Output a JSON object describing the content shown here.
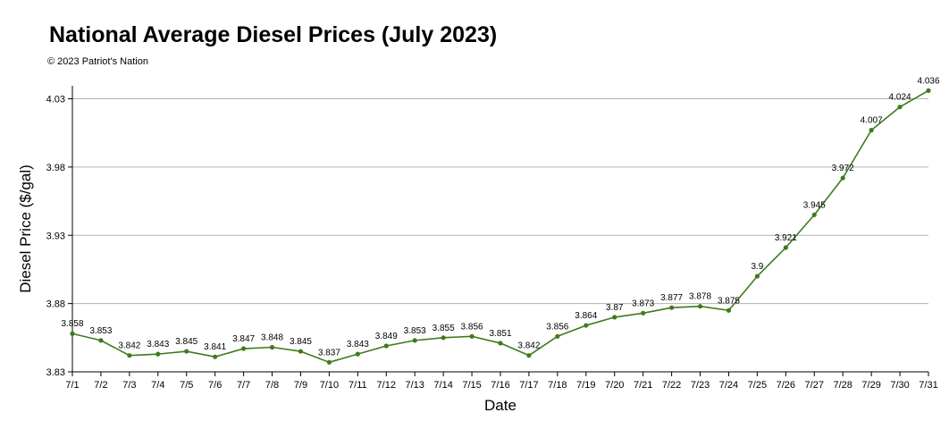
{
  "chart_data": {
    "type": "line",
    "title": "National Average Diesel Prices (July 2023)",
    "subtitle": "© 2023 Patriot's Nation",
    "xlabel": "Date",
    "ylabel": "Diesel Price ($/gal)",
    "categories": [
      "7/1",
      "7/2",
      "7/3",
      "7/4",
      "7/5",
      "7/6",
      "7/7",
      "7/8",
      "7/9",
      "7/10",
      "7/11",
      "7/12",
      "7/13",
      "7/14",
      "7/15",
      "7/16",
      "7/17",
      "7/18",
      "7/19",
      "7/20",
      "7/21",
      "7/22",
      "7/23",
      "7/24",
      "7/25",
      "7/26",
      "7/27",
      "7/28",
      "7/29",
      "7/30",
      "7/31"
    ],
    "series": [
      {
        "values": [
          3.858,
          3.853,
          3.842,
          3.843,
          3.845,
          3.841,
          3.847,
          3.848,
          3.845,
          3.837,
          3.843,
          3.849,
          3.853,
          3.855,
          3.856,
          3.851,
          3.842,
          3.856,
          3.864,
          3.87,
          3.873,
          3.877,
          3.878,
          3.875,
          3.9,
          3.921,
          3.945,
          3.972,
          4.007,
          4.024,
          4.036
        ],
        "data_labels": [
          "3.858",
          "3.853",
          "3.842",
          "3.843",
          "3.845",
          "3.841",
          "3.847",
          "3.848",
          "3.845",
          "3.837",
          "3.843",
          "3.849",
          "3.853",
          "3.855",
          "3.856",
          "3.851",
          "3.842",
          "3.856",
          "3.864",
          "3.87",
          "3.873",
          "3.877",
          "3.878",
          "3.875",
          "3.9",
          "3.921",
          "3.945",
          "3.972",
          "4.007",
          "4.024",
          "4.036"
        ],
        "color": "#3f7a1e"
      }
    ],
    "yticks": [
      3.83,
      3.88,
      3.93,
      3.98,
      4.03
    ],
    "ytick_labels": [
      "3.83",
      "3.88",
      "3.93",
      "3.98",
      "4.03"
    ],
    "ylim": [
      3.83,
      4.036
    ],
    "grid": "horizontal",
    "grid_color": "#b3b3b3",
    "legend": "none"
  }
}
